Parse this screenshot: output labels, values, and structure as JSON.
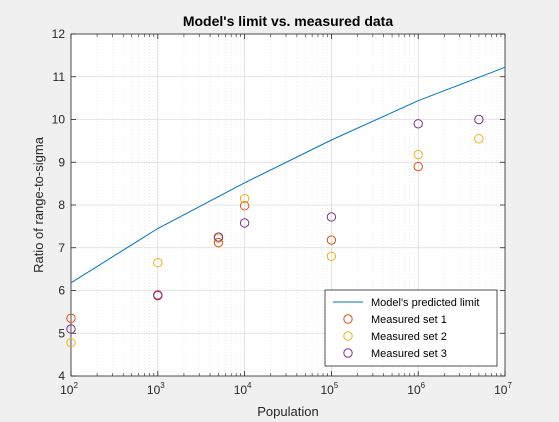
{
  "chart_data": {
    "type": "line+scatter",
    "title": "Model's limit vs. measured data",
    "xlabel": "Population",
    "ylabel": "Ratio of range-to-sigma",
    "xscale": "log",
    "xlim": [
      100,
      10000000
    ],
    "ylim": [
      4,
      12
    ],
    "x_ticks": [
      {
        "base": "10",
        "exp": "2"
      },
      {
        "base": "10",
        "exp": "3"
      },
      {
        "base": "10",
        "exp": "4"
      },
      {
        "base": "10",
        "exp": "5"
      },
      {
        "base": "10",
        "exp": "6"
      },
      {
        "base": "10",
        "exp": "7"
      }
    ],
    "y_ticks": [
      "4",
      "5",
      "6",
      "7",
      "8",
      "9",
      "10",
      "11",
      "12"
    ],
    "grid": true,
    "minor_grid": true,
    "legend_position": "bottom-right",
    "series": [
      {
        "name": "Model's predicted limit",
        "style": "line",
        "color": "#0072BD",
        "x": [
          100,
          1000,
          10000,
          100000,
          1000000,
          10000000
        ],
        "y": [
          6.18,
          7.45,
          8.52,
          9.52,
          10.44,
          11.22
        ]
      },
      {
        "name": "Measured set 1",
        "style": "marker-circle",
        "color": "#D95319",
        "x": [
          100,
          1000,
          5000,
          10000,
          100000,
          1000000
        ],
        "y": [
          5.35,
          5.9,
          7.12,
          7.98,
          7.18,
          8.9
        ]
      },
      {
        "name": "Measured set 2",
        "style": "marker-circle",
        "color": "#EDB120",
        "x": [
          100,
          1000,
          5000,
          10000,
          100000,
          1000000,
          5000000
        ],
        "y": [
          4.78,
          6.65,
          7.22,
          8.15,
          6.8,
          9.18,
          9.55
        ]
      },
      {
        "name": "Measured set 3",
        "style": "marker-circle",
        "color": "#7E2F8E",
        "x": [
          100,
          1000,
          5000,
          10000,
          100000,
          1000000,
          5000000
        ],
        "y": [
          5.1,
          5.88,
          7.25,
          7.58,
          7.72,
          9.9,
          10.0
        ]
      }
    ]
  }
}
